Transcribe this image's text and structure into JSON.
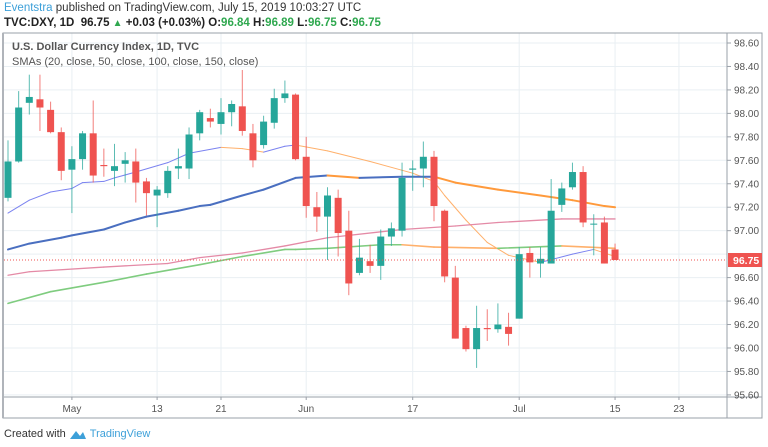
{
  "header": {
    "author": "Eventstra",
    "published": "published on TradingView.com, July 15, 2019 10:03:27 UTC",
    "symbol": "TVC:DXY, 1D",
    "last": "96.75",
    "change": "+0.03 (+0.03%)",
    "o_label": "O:",
    "o": "96.84",
    "h_label": "H:",
    "h": "96.89",
    "l_label": "L:",
    "l": "96.75",
    "c_label": "C:",
    "c": "96.75"
  },
  "legend": {
    "title": "U.S. Dollar Currency Index, 1D, TVC",
    "indicator": "SMAs (20, close, 50, close, 100, close, 150, close)"
  },
  "footer": {
    "created_with": "Created with",
    "brand": "TradingView"
  },
  "colors": {
    "up": "#26a69a",
    "down": "#ef5350",
    "sma20": "#7b83f0",
    "sma50": "#4a6fc0",
    "sma100": "#e48aa6",
    "sma150": "#7fcc7f",
    "falling": "#ffb06b",
    "falling_strong": "#ff9a3c"
  },
  "chart_data": {
    "type": "candlestick",
    "title": "U.S. Dollar Currency Index, 1D, TVC",
    "ylim": [
      95.6,
      98.6
    ],
    "yticks": [
      "98.60",
      "98.40",
      "98.20",
      "98.00",
      "97.80",
      "97.60",
      "97.40",
      "97.20",
      "97.00",
      "96.60",
      "96.40",
      "96.20",
      "96.00",
      "95.80",
      "95.60"
    ],
    "ytick_values": [
      98.6,
      98.4,
      98.2,
      98.0,
      97.8,
      97.6,
      97.4,
      97.2,
      97.0,
      96.6,
      96.4,
      96.2,
      96.0,
      95.8,
      95.6
    ],
    "last_price": 96.75,
    "last_price_label": "96.75",
    "xticks": [
      {
        "label": "May",
        "bar": 6
      },
      {
        "label": "13",
        "bar": 14
      },
      {
        "label": "21",
        "bar": 20
      },
      {
        "label": "Jun",
        "bar": 28
      },
      {
        "label": "17",
        "bar": 38
      },
      {
        "label": "Jul",
        "bar": 48
      },
      {
        "label": "15",
        "bar": 57
      },
      {
        "label": "23",
        "bar": 63
      }
    ],
    "ohlc": [
      [
        97.28,
        97.77,
        97.25,
        97.59
      ],
      [
        97.59,
        98.19,
        97.58,
        98.05
      ],
      [
        98.09,
        98.33,
        97.99,
        98.14
      ],
      [
        98.12,
        98.33,
        97.85,
        98.05
      ],
      [
        98.03,
        98.1,
        97.83,
        97.84
      ],
      [
        97.84,
        97.88,
        97.43,
        97.51
      ],
      [
        97.52,
        97.72,
        97.15,
        97.61
      ],
      [
        97.61,
        97.85,
        97.52,
        97.83
      ],
      [
        97.83,
        98.11,
        97.41,
        97.47
      ],
      [
        97.56,
        97.7,
        97.46,
        97.55
      ],
      [
        97.51,
        97.74,
        97.38,
        97.55
      ],
      [
        97.57,
        97.67,
        97.41,
        97.6
      ],
      [
        97.59,
        97.7,
        97.24,
        97.41
      ],
      [
        97.42,
        97.45,
        97.13,
        97.32
      ],
      [
        97.3,
        97.38,
        97.03,
        97.35
      ],
      [
        97.32,
        97.55,
        97.28,
        97.51
      ],
      [
        97.53,
        97.7,
        97.44,
        97.55
      ],
      [
        97.53,
        97.88,
        97.44,
        97.82
      ],
      [
        97.83,
        98.03,
        97.77,
        98.01
      ],
      [
        97.96,
        98.04,
        97.88,
        97.93
      ],
      [
        97.91,
        98.13,
        97.82,
        98.01
      ],
      [
        98.01,
        98.11,
        97.89,
        98.08
      ],
      [
        98.06,
        98.37,
        97.81,
        97.85
      ],
      [
        97.83,
        97.91,
        97.54,
        97.6
      ],
      [
        97.73,
        97.98,
        97.7,
        97.93
      ],
      [
        97.92,
        98.21,
        97.87,
        98.13
      ],
      [
        98.13,
        98.28,
        98.09,
        98.17
      ],
      [
        98.16,
        98.17,
        97.6,
        97.61
      ],
      [
        97.63,
        97.8,
        97.11,
        97.21
      ],
      [
        97.2,
        97.33,
        96.99,
        97.12
      ],
      [
        97.12,
        97.37,
        96.75,
        97.3
      ],
      [
        97.28,
        97.35,
        96.78,
        96.98
      ],
      [
        97.0,
        97.17,
        96.45,
        96.55
      ],
      [
        96.64,
        96.93,
        96.62,
        96.77
      ],
      [
        96.74,
        96.88,
        96.64,
        96.7
      ],
      [
        96.7,
        97.01,
        96.58,
        96.95
      ],
      [
        96.95,
        97.07,
        96.87,
        97.02
      ],
      [
        97.0,
        97.58,
        96.95,
        97.45
      ],
      [
        97.52,
        97.6,
        97.34,
        97.53
      ],
      [
        97.53,
        97.76,
        97.37,
        97.63
      ],
      [
        97.63,
        97.68,
        97.08,
        97.21
      ],
      [
        97.17,
        97.18,
        96.56,
        96.61
      ],
      [
        96.6,
        96.7,
        96.08,
        96.08
      ],
      [
        96.17,
        96.19,
        95.97,
        95.99
      ],
      [
        95.99,
        96.36,
        95.83,
        96.17
      ],
      [
        96.17,
        96.33,
        96.06,
        96.16
      ],
      [
        96.16,
        96.38,
        96.13,
        96.2
      ],
      [
        96.18,
        96.3,
        96.02,
        96.12
      ],
      [
        96.25,
        96.86,
        96.25,
        96.8
      ],
      [
        96.81,
        96.86,
        96.6,
        96.73
      ],
      [
        96.72,
        96.86,
        96.6,
        96.76
      ],
      [
        96.72,
        97.44,
        96.72,
        97.17
      ],
      [
        97.22,
        97.41,
        97.16,
        97.36
      ],
      [
        97.37,
        97.58,
        97.35,
        97.5
      ],
      [
        97.5,
        97.55,
        97.03,
        97.07
      ],
      [
        97.06,
        97.14,
        96.79,
        97.06
      ],
      [
        97.07,
        97.12,
        96.72,
        96.72
      ],
      [
        96.84,
        96.89,
        96.75,
        96.75
      ]
    ],
    "series": [
      {
        "name": "SMA 20",
        "width": 1,
        "points": [
          [
            0,
            97.15
          ],
          [
            2,
            97.26
          ],
          [
            4,
            97.33
          ],
          [
            6,
            97.36
          ],
          [
            7,
            97.41
          ],
          [
            9,
            97.42
          ],
          [
            10,
            97.45
          ],
          [
            12,
            97.5
          ],
          [
            15,
            97.58
          ],
          [
            17,
            97.66
          ],
          [
            20,
            97.71
          ],
          [
            22,
            97.7
          ],
          [
            24,
            97.67
          ],
          [
            26,
            97.72
          ],
          [
            27,
            97.73
          ],
          [
            30,
            97.68
          ],
          [
            34,
            97.59
          ],
          [
            38,
            97.49
          ],
          [
            40,
            97.42
          ],
          [
            41,
            97.3
          ],
          [
            43,
            97.09
          ],
          [
            45,
            96.9
          ],
          [
            47,
            96.79
          ],
          [
            50,
            96.73
          ],
          [
            53,
            96.8
          ],
          [
            55,
            96.84
          ],
          [
            57,
            96.78
          ]
        ]
      },
      {
        "name": "SMA 50",
        "width": 2,
        "points": [
          [
            0,
            96.84
          ],
          [
            2,
            96.89
          ],
          [
            5,
            96.94
          ],
          [
            6,
            96.96
          ],
          [
            9,
            97.01
          ],
          [
            11,
            97.07
          ],
          [
            13,
            97.12
          ],
          [
            16,
            97.17
          ],
          [
            18,
            97.21
          ],
          [
            19,
            97.22
          ],
          [
            22,
            97.3
          ],
          [
            24,
            97.35
          ],
          [
            27,
            97.45
          ],
          [
            30,
            97.47
          ],
          [
            33,
            97.45
          ],
          [
            37,
            97.46
          ],
          [
            40,
            97.46
          ],
          [
            42,
            97.41
          ],
          [
            46,
            97.35
          ],
          [
            50,
            97.3
          ],
          [
            53,
            97.26
          ],
          [
            56,
            97.21
          ],
          [
            57,
            97.2
          ]
        ]
      },
      {
        "name": "SMA 100",
        "width": 1.3,
        "points": [
          [
            0,
            96.62
          ],
          [
            2,
            96.65
          ],
          [
            9,
            96.69
          ],
          [
            15,
            96.72
          ],
          [
            18,
            96.77
          ],
          [
            22,
            96.81
          ],
          [
            26,
            96.87
          ],
          [
            30,
            96.94
          ],
          [
            37,
            97.01
          ],
          [
            42,
            97.04
          ],
          [
            46,
            97.07
          ],
          [
            52,
            97.1
          ],
          [
            57,
            97.1
          ]
        ]
      },
      {
        "name": "SMA 150",
        "width": 1.6,
        "points": [
          [
            0,
            96.38
          ],
          [
            4,
            96.48
          ],
          [
            9,
            96.56
          ],
          [
            13,
            96.63
          ],
          [
            18,
            96.71
          ],
          [
            22,
            96.78
          ],
          [
            26,
            96.84
          ],
          [
            27,
            96.84
          ],
          [
            30,
            96.85
          ],
          [
            35,
            96.88
          ],
          [
            37,
            96.88
          ],
          [
            40,
            96.86
          ],
          [
            46,
            96.85
          ],
          [
            52,
            96.87
          ],
          [
            57,
            96.85
          ]
        ]
      }
    ]
  }
}
